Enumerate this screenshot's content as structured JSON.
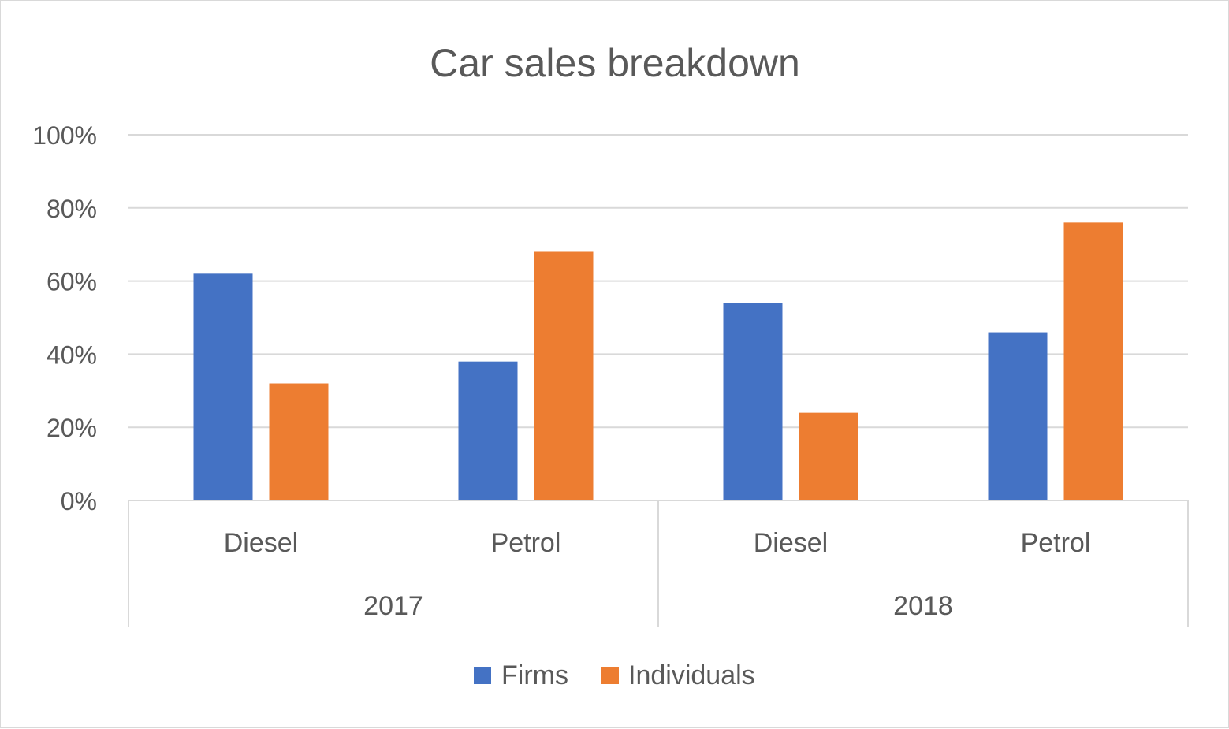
{
  "chart_data": {
    "type": "bar",
    "title": "Car sales breakdown",
    "groups": [
      "2017",
      "2018"
    ],
    "categories": [
      "Diesel",
      "Petrol",
      "Diesel",
      "Petrol"
    ],
    "category_group": [
      0,
      0,
      1,
      1
    ],
    "series": [
      {
        "name": "Firms",
        "color": "#4472C4",
        "values": [
          62,
          38,
          54,
          46
        ]
      },
      {
        "name": "Individuals",
        "color": "#ED7D31",
        "values": [
          32,
          68,
          24,
          76
        ]
      }
    ],
    "ylim": [
      0,
      100
    ],
    "yticks": [
      0,
      20,
      40,
      60,
      80,
      100
    ],
    "ytick_labels": [
      "0%",
      "20%",
      "40%",
      "60%",
      "80%",
      "100%"
    ],
    "ylabel": "",
    "xlabel": "",
    "grid": true,
    "legend": "bottom"
  }
}
